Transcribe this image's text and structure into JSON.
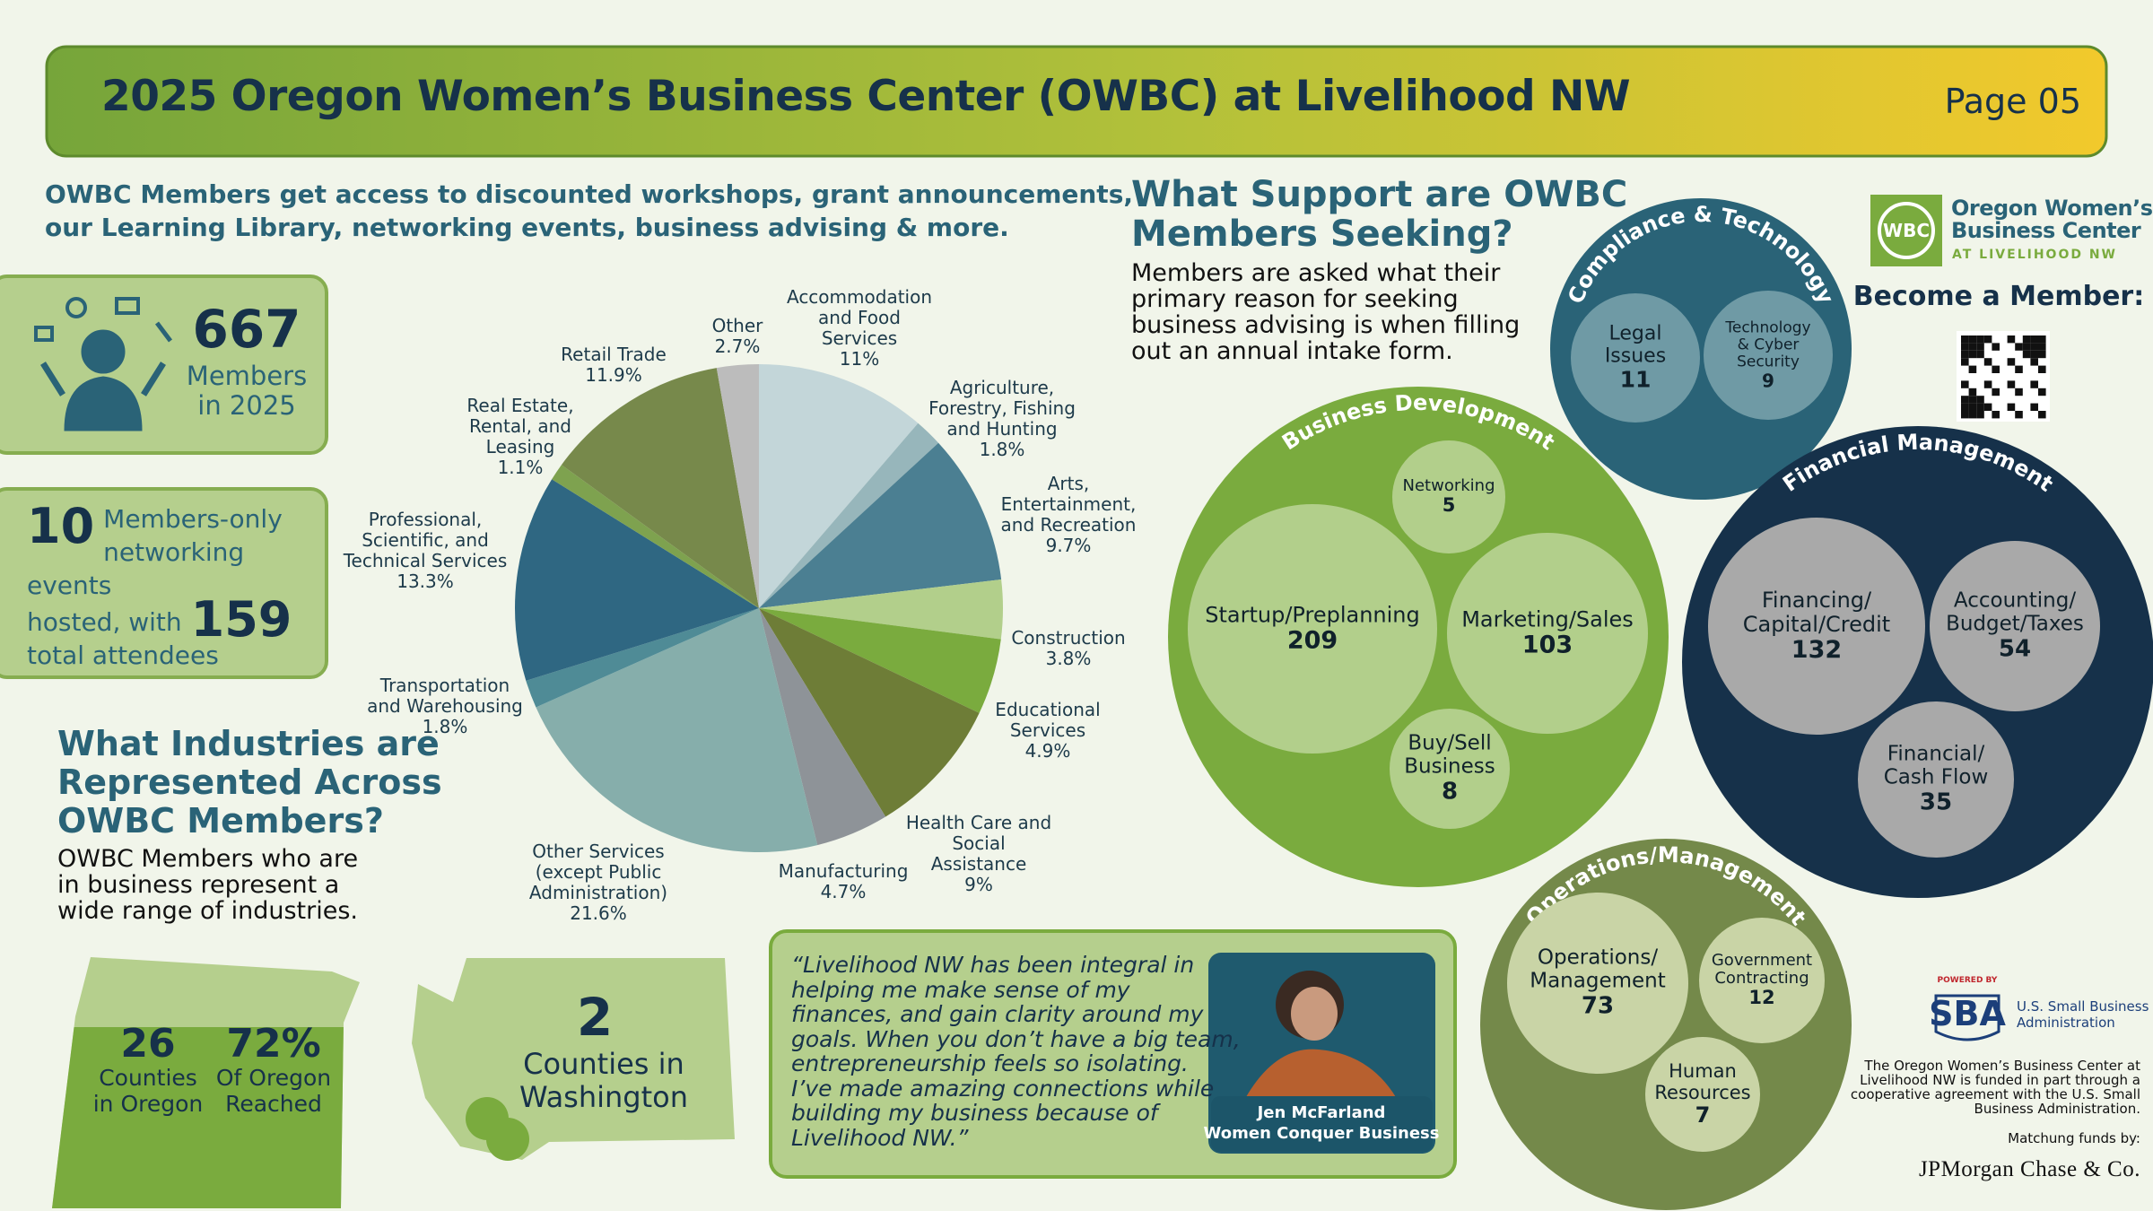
{
  "header": {
    "title": "2025 Oregon Women’s Business Center (OWBC) at Livelihood NW",
    "page": "Page 05"
  },
  "intro": [
    "OWBC Members get access to discounted workshops, grant announcements,",
    "our Learning Library, networking events, business advising & more."
  ],
  "members": {
    "count": 667,
    "label": "Members\nin 2025"
  },
  "events": {
    "count": 10,
    "text": "Members-only\nnetworking events\nhosted, with",
    "attendees": 159,
    "attendees_label": "total attendees"
  },
  "industries": {
    "heading": "What Industries are\nRepresented Across\nOWBC Members?",
    "text": "OWBC Members who are\nin business represent a\nwide range of industries."
  },
  "chart_data": {
    "type": "pie",
    "categories": [
      "Accommodation\nand Food\nServices",
      "Agriculture,\nForestry, Fishing\nand Hunting",
      "Arts,\nEntertainment,\nand Recreation",
      "Construction",
      "Educational\nServices",
      "Health Care and\nSocial\nAssistance",
      "Manufacturing",
      "Other Services\n(except Public\nAdministration)",
      "Transportation\nand Warehousing",
      "Professional,\nScientific, and\nTechnical Services",
      "Real Estate,\nRental, and\nLeasing",
      "Retail Trade",
      "Other"
    ],
    "values": [
      11,
      1.8,
      9.7,
      3.8,
      4.9,
      9,
      4.7,
      21.6,
      1.8,
      13.3,
      1.1,
      11.9,
      2.7
    ],
    "value_labels": [
      "11%",
      "1.8%",
      "9.7%",
      "3.8%",
      "4.9%",
      "9%",
      "4.7%",
      "21.6%",
      "1.8%",
      "13.3%",
      "1.1%",
      "11.9%",
      "2.7%"
    ],
    "colors": [
      "#c3d6d9",
      "#97b6bb",
      "#4b7f92",
      "#b2cf8b",
      "#7aab3e",
      "#6e7d37",
      "#8e9398",
      "#86aeab",
      "#4f8b96",
      "#2f6782",
      "#7ea24f",
      "#77894b",
      "#bcbcbc"
    ]
  },
  "oregon": {
    "counties": 26,
    "counties_label": "Counties\nin Oregon",
    "reach": "72%",
    "reach_label": "Of Oregon\nReached"
  },
  "washington": {
    "counties": 2,
    "label": "Counties in\nWashington"
  },
  "quote": {
    "text": "“Livelihood NW has been integral in\nhelping me make sense of my\nfinances, and gain clarity around my\ngoals. When you don’t have a big team,\nentrepreneurship feels so isolating.\nI’ve made amazing connections while\nbuilding my business because of\nLivelihood NW.”",
    "name": "Jen McFarland",
    "org": "Women Conquer Business"
  },
  "support": {
    "heading": "What Support are OWBC\nMembers Seeking?",
    "text": "Members are asked what their\nprimary reason for seeking\nbusiness advising is when filling\nout an annual intake form.",
    "groups": [
      {
        "name": "Compliance & Technology",
        "items": [
          {
            "label": "Legal\nIssues",
            "value": 11
          },
          {
            "label": "Technology\n& Cyber\nSecurity",
            "value": 9
          }
        ]
      },
      {
        "name": "Business Development",
        "items": [
          {
            "label": "Networking",
            "value": 5
          },
          {
            "label": "Startup/Preplanning",
            "value": 209
          },
          {
            "label": "Marketing/Sales",
            "value": 103
          },
          {
            "label": "Buy/Sell\nBusiness",
            "value": 8
          }
        ]
      },
      {
        "name": "Financial Management",
        "items": [
          {
            "label": "Financing/\nCapital/Credit",
            "value": 132
          },
          {
            "label": "Accounting/\nBudget/Taxes",
            "value": 54
          },
          {
            "label": "Financial/\nCash Flow",
            "value": 35
          }
        ]
      },
      {
        "name": "Operations/Management",
        "items": [
          {
            "label": "Operations/\nManagement",
            "value": 73
          },
          {
            "label": "Government\nContracting",
            "value": 12
          },
          {
            "label": "Human\nResources",
            "value": 7
          }
        ]
      }
    ]
  },
  "logo": {
    "badge": "WBC",
    "name": "Oregon Women’s\nBusiness Center",
    "tag": "AT LIVELIHOOD NW"
  },
  "member_cta": "Become a Member:",
  "sba": {
    "powered": "POWERED BY",
    "mark": "SBA",
    "name": "U.S. Small Business\nAdministration"
  },
  "funding": "The Oregon Women’s Business Center at\nLivelihood NW is funded in part through a\ncooperative agreement with the U.S. Small\nBusiness Administration.",
  "matching": "Matchung funds by:",
  "jpm": "JPMorgan Chase & Co."
}
